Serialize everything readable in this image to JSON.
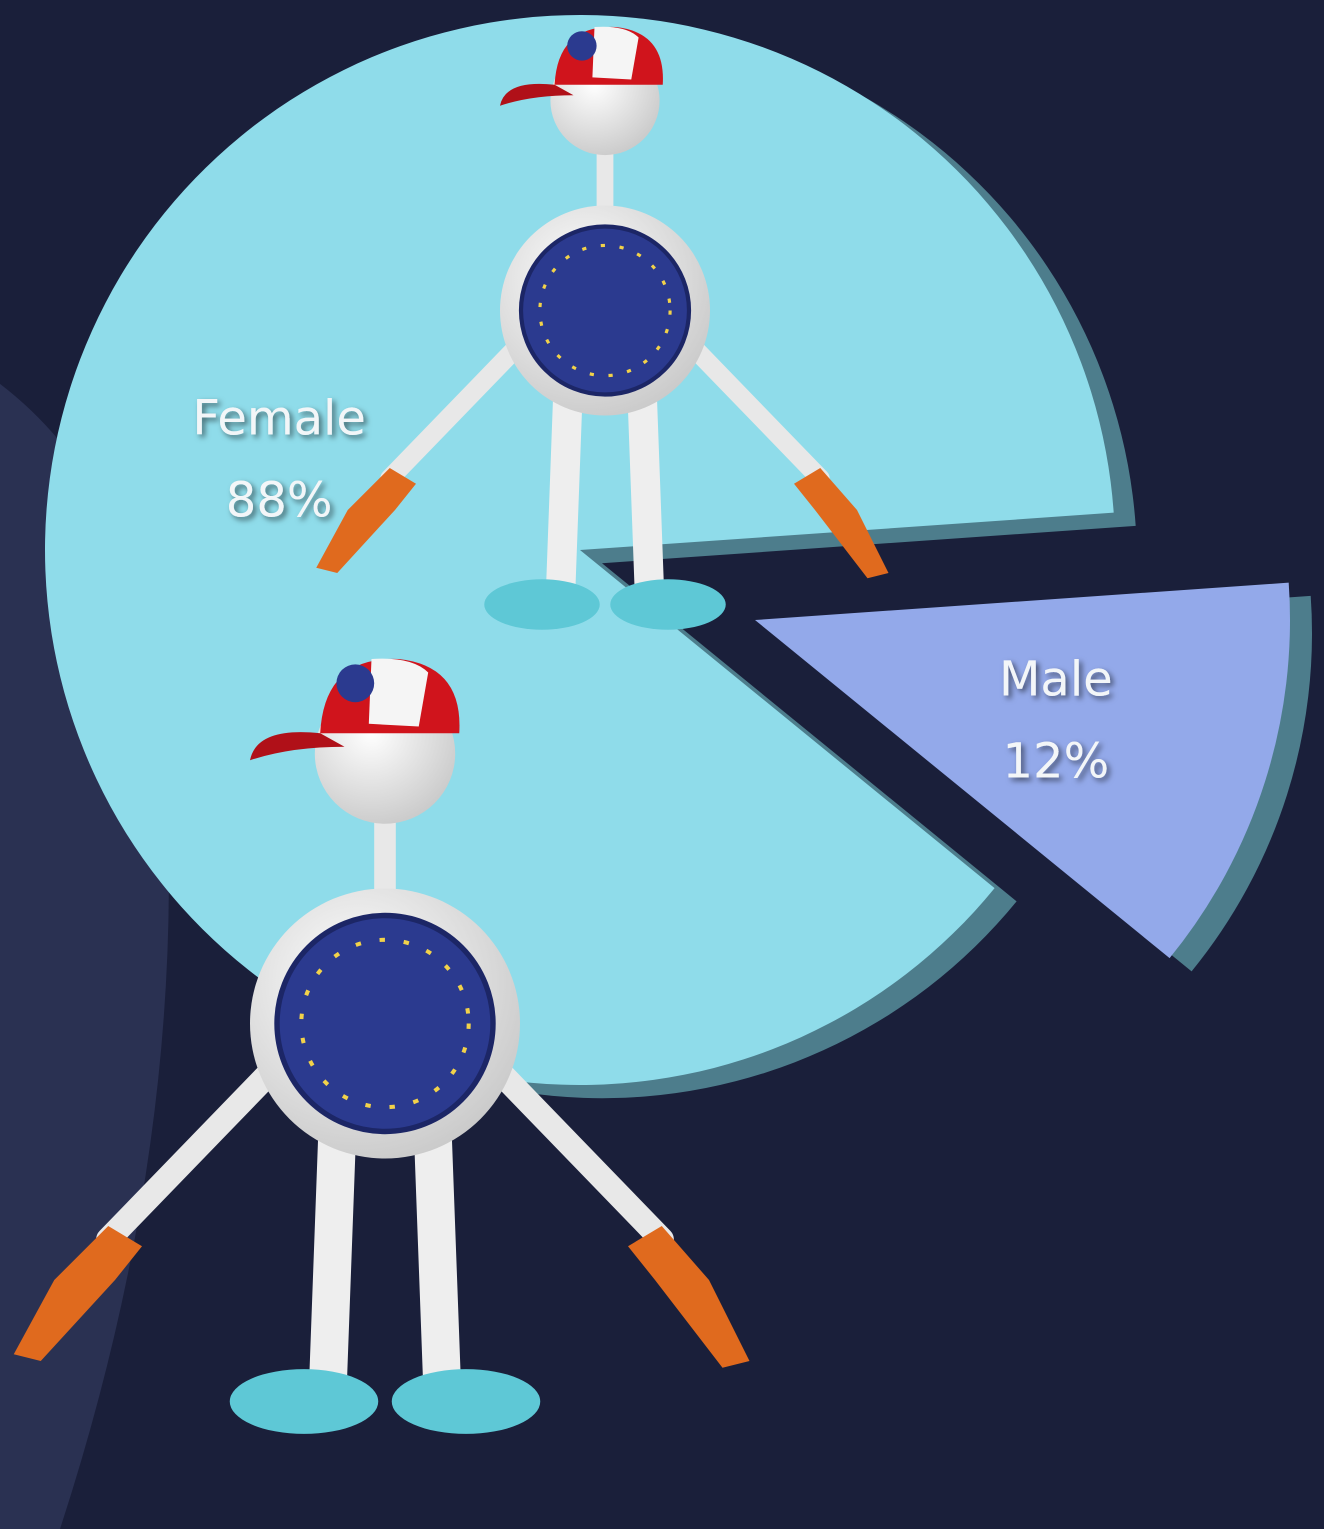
{
  "chart_data": {
    "type": "pie",
    "categories": [
      "Female",
      "Male"
    ],
    "values": [
      88,
      12
    ],
    "value_labels": [
      "88%",
      "12%"
    ],
    "colors": [
      "#8fdcea",
      "#93a9ea"
    ],
    "exploded": [
      "Male"
    ]
  }
}
